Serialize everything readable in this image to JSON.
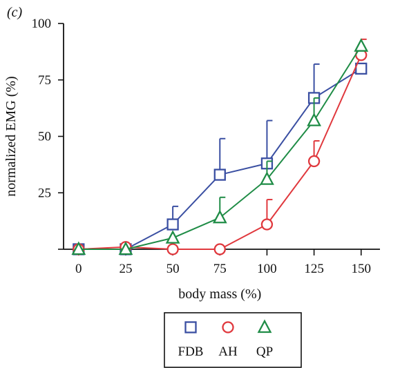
{
  "panel_label": "(c)",
  "chart_data": {
    "type": "line",
    "xlabel": "body mass (%)",
    "ylabel": "normalized EMG (%)",
    "x": [
      0,
      25,
      50,
      75,
      100,
      125,
      150
    ],
    "x_ticks": [
      "0",
      "25",
      "50",
      "75",
      "100",
      "125",
      "150"
    ],
    "y_ticks": [
      "25",
      "50",
      "75",
      "100"
    ],
    "xlim": [
      -8,
      160
    ],
    "ylim": [
      0,
      100
    ],
    "grid": false,
    "legend_position": "bottom-center",
    "series": [
      {
        "name": "FDB",
        "marker": "square",
        "color": "#3a4fa2",
        "values": [
          0,
          0,
          11,
          33,
          38,
          67,
          80
        ],
        "errors": [
          0,
          0,
          8,
          16,
          19,
          15,
          0
        ]
      },
      {
        "name": "AH",
        "marker": "circle",
        "color": "#e0383d",
        "values": [
          0,
          1,
          0,
          0,
          11,
          39,
          86
        ],
        "errors": [
          0,
          0,
          0,
          0,
          11,
          9,
          7
        ]
      },
      {
        "name": "QP",
        "marker": "triangle",
        "color": "#1f8c46",
        "values": [
          0,
          0,
          5,
          14,
          31,
          57,
          90
        ],
        "errors": [
          0,
          0,
          0,
          9,
          8,
          10,
          0
        ]
      }
    ]
  }
}
